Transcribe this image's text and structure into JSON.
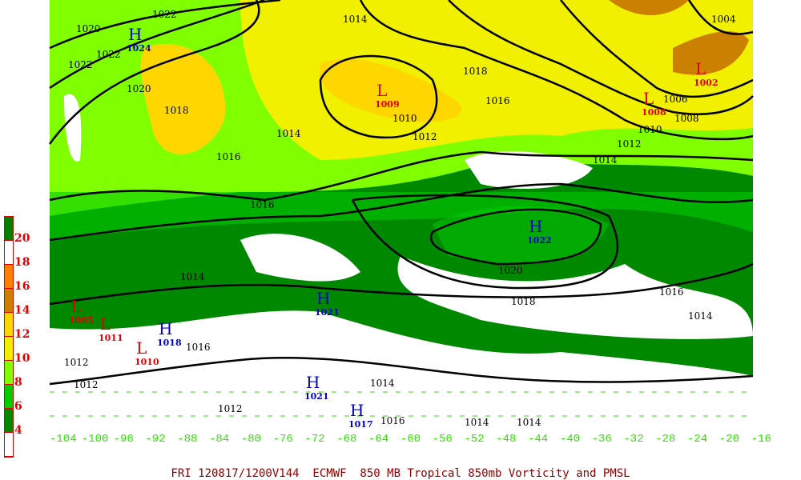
{
  "title": "FRI 120817/1200V144  ECMWF  850 MB Tropical 850mb Vorticity and PMSL",
  "legend": {
    "labels": [
      "20",
      "18",
      "16",
      "14",
      "12",
      "10",
      "8",
      "6",
      "4"
    ],
    "colors": [
      "#008000",
      "#ffffff",
      "#ff8000",
      "#cc8000",
      "#ffd700",
      "#f0f000",
      "#80ff00",
      "#00cc00",
      "#008800",
      "#ffffff"
    ]
  },
  "longitudes": [
    "-104",
    "-100",
    "-96",
    "-92",
    "-88",
    "-84",
    "-80",
    "-76",
    "-72",
    "-68",
    "-64",
    "-60",
    "-56",
    "-52",
    "-48",
    "-44",
    "-40",
    "-36",
    "-32",
    "-28",
    "-24",
    "-20",
    "-16"
  ],
  "centers": [
    {
      "type": "H",
      "value": "1024",
      "color": "#0000cc"
    },
    {
      "type": "L",
      "value": "1009",
      "color": "#e00000"
    },
    {
      "type": "H",
      "value": "1022",
      "color": "#0000cc"
    },
    {
      "type": "L",
      "value": "1005",
      "color": "#e00000"
    },
    {
      "type": "L",
      "value": "1011",
      "color": "#e00000"
    },
    {
      "type": "L",
      "value": "1010",
      "color": "#e00000"
    },
    {
      "type": "H",
      "value": "1021",
      "color": "#0000cc"
    },
    {
      "type": "H",
      "value": "1021",
      "color": "#0000cc"
    },
    {
      "type": "H",
      "value": "1018",
      "color": "#0000cc"
    },
    {
      "type": "L",
      "value": "1008",
      "color": "#e00000"
    },
    {
      "type": "L",
      "value": "1002",
      "color": "#e00000"
    },
    {
      "type": "H",
      "value": "1017",
      "color": "#0000cc"
    }
  ],
  "isobar_labels": [
    "1022",
    "1014",
    "1022",
    "1020",
    "1018",
    "1016",
    "1014",
    "1012",
    "1010",
    "1004",
    "1006",
    "1008",
    "1010",
    "1012",
    "1014",
    "1016",
    "1020",
    "1018",
    "1016",
    "1014",
    "1012",
    "1012",
    "1014",
    "1016",
    "1022",
    "1020",
    "1018",
    "1014",
    "1016",
    "1014",
    "1014",
    "1012",
    "1016"
  ]
}
